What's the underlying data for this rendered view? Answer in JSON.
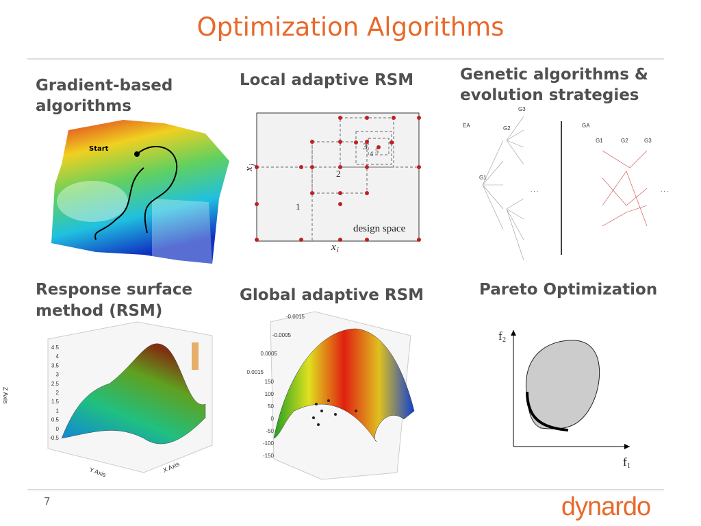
{
  "title": "Optimization Algorithms",
  "sections": [
    {
      "heading": [
        "Gradient-based",
        "algorithms"
      ],
      "figure": {
        "start": "Start"
      }
    },
    {
      "heading": [
        "Local adaptive RSM"
      ],
      "figure": {
        "points": [
          "1",
          "2",
          "3",
          "4",
          "5"
        ],
        "x_axis": "x",
        "x_sub": "i",
        "y_axis": "x",
        "y_sub": "j",
        "note": "design space"
      }
    },
    {
      "heading": [
        "Genetic algorithms &",
        "evolution strategies"
      ],
      "figure": {
        "left": "EA",
        "right": "GA",
        "generations": [
          "G1",
          "G2",
          "G3"
        ],
        "ellipsis": ". . ."
      }
    },
    {
      "heading": [
        "Response surface",
        "method (RSM)"
      ],
      "figure": {
        "z_axis": "Z Axis",
        "y_axis": "Y Axis",
        "x_axis": "X Axis",
        "z_ticks": [
          "4.5",
          "4",
          "3.5",
          "3",
          "2.5",
          "2",
          "1.5",
          "1",
          "0.5",
          "0",
          "-0.5"
        ]
      }
    },
    {
      "heading": [
        "Global adaptive RSM"
      ],
      "figure": {
        "ticks": [
          "-0.0015",
          "-0.0005",
          "0.0005",
          "0.0015",
          "150",
          "100",
          "50",
          "0",
          "-50",
          "-100",
          "-150"
        ]
      }
    },
    {
      "heading": [
        "Pareto Optimization"
      ],
      "figure": {
        "f": "f",
        "f1_sub": "1",
        "f2_sub": "2"
      }
    }
  ],
  "footer": {
    "page": "7",
    "logo": "dynardo"
  }
}
